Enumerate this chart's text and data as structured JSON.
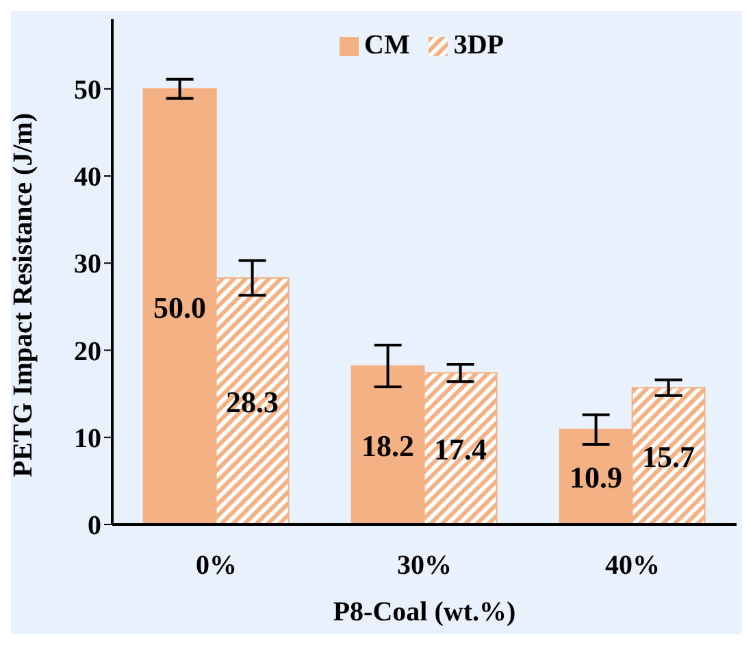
{
  "chart_data": {
    "type": "bar",
    "xlabel": "P8-Coal (wt.%)",
    "ylabel": "PETG Impact Resistance (J/m)",
    "categories": [
      "0%",
      "30%",
      "40%"
    ],
    "series": [
      {
        "name": "CM",
        "color": "#f4b183",
        "values": [
          50.0,
          18.2,
          10.9
        ],
        "value_labels": [
          "50.0",
          "18.2",
          "10.9"
        ],
        "errors": [
          1.1,
          2.4,
          1.7
        ]
      },
      {
        "name": "3DP",
        "color": "#f4b183",
        "values": [
          28.3,
          17.4,
          15.7
        ],
        "value_labels": [
          "28.3",
          "17.4",
          "15.7"
        ],
        "errors": [
          2.0,
          1.0,
          0.9
        ]
      }
    ],
    "ylim": [
      0,
      58
    ],
    "yticks": [
      0,
      10,
      20,
      30,
      40,
      50
    ],
    "grid": false,
    "legend": "top"
  }
}
